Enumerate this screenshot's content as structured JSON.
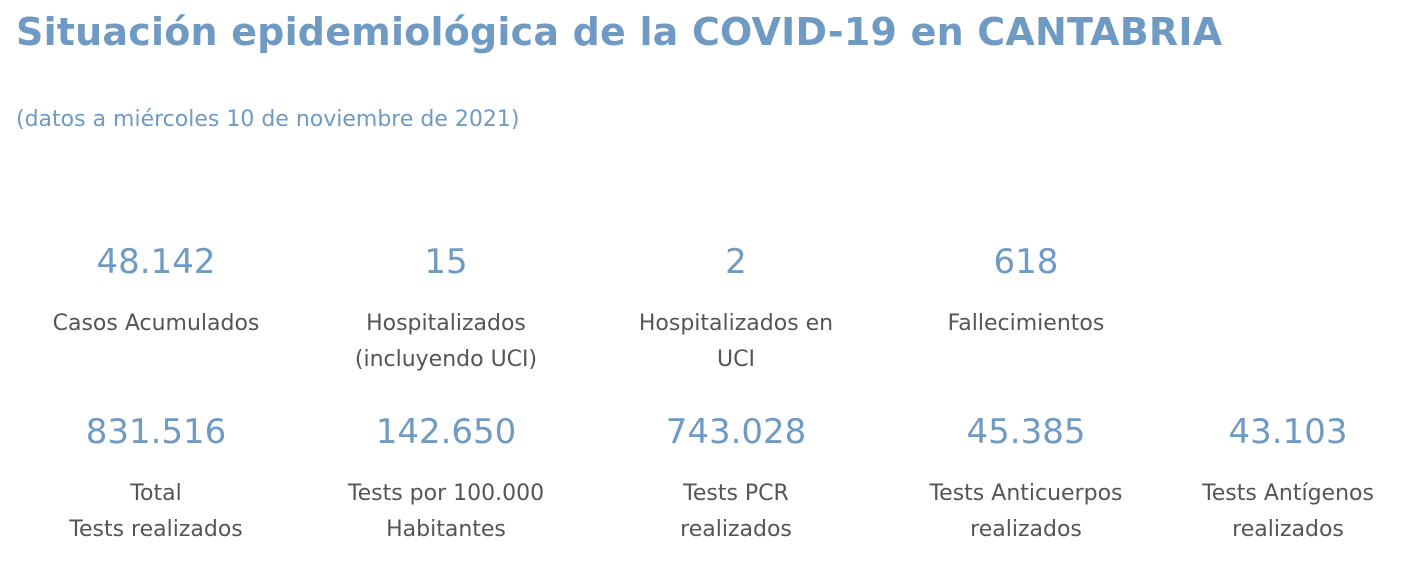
{
  "header": {
    "title": "Situación epidemiológica de la COVID-19 en CANTABRIA",
    "subtitle": "(datos a miércoles 10 de noviembre de 2021)"
  },
  "stats_row1": [
    {
      "value": "48.142",
      "label": "Casos Acumulados"
    },
    {
      "value": "15",
      "label": "Hospitalizados\n(incluyendo UCI)"
    },
    {
      "value": "2",
      "label": "Hospitalizados en\nUCI"
    },
    {
      "value": "618",
      "label": "Fallecimientos"
    }
  ],
  "stats_row2": [
    {
      "value": "831.516",
      "label": "Total\nTests realizados"
    },
    {
      "value": "142.650",
      "label": "Tests por 100.000\nHabitantes"
    },
    {
      "value": "743.028",
      "label": " Tests PCR\nrealizados"
    },
    {
      "value": "45.385",
      "label": "Tests Anticuerpos\nrealizados"
    },
    {
      "value": "43.103",
      "label": "Tests Antígenos\nrealizados"
    }
  ]
}
